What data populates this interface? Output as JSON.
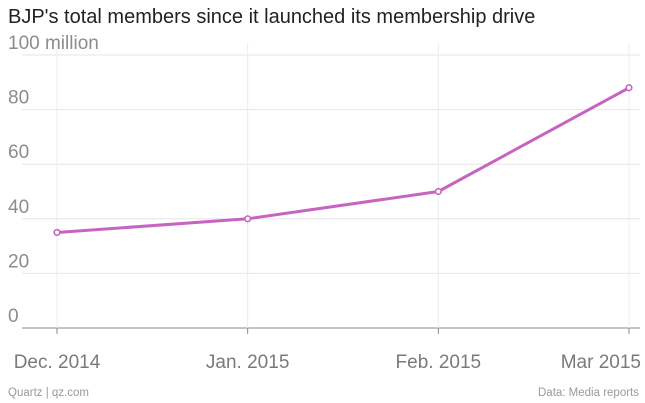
{
  "chart_data": {
    "type": "line",
    "title": "BJP's total members since it launched its membership drive",
    "xlabel": "",
    "ylabel": "",
    "categories": [
      "Dec. 2014",
      "Jan. 2015",
      "Feb. 2015",
      "Mar 2015"
    ],
    "series": [
      {
        "values": [
          35,
          40,
          50,
          88
        ],
        "color": "#c764c2"
      }
    ],
    "ylim": [
      0,
      100
    ],
    "yticks": [
      {
        "value": 0,
        "label": "0"
      },
      {
        "value": 20,
        "label": "20"
      },
      {
        "value": 40,
        "label": "40"
      },
      {
        "value": 60,
        "label": "60"
      },
      {
        "value": 80,
        "label": "80"
      },
      {
        "value": 100,
        "label": "100 million"
      }
    ],
    "grid": true
  },
  "footer": {
    "source_left": "Quartz | qz.com",
    "source_right": "Data: Media reports"
  }
}
